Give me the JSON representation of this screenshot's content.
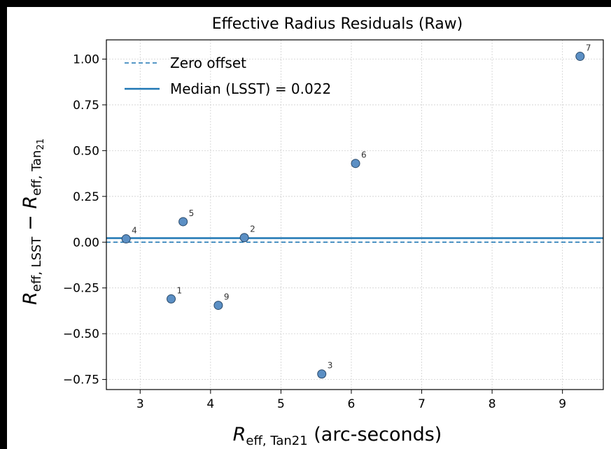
{
  "chart_data": {
    "type": "scatter",
    "title": "Effective Radius Residuals (Raw)",
    "xlabel": {
      "main": "R",
      "sub": "eff, Tan21",
      "tail": " (arc-seconds)"
    },
    "ylabel": {
      "a_main": "R",
      "a_sub": "eff, LSST",
      "minus": " − ",
      "b_main": "R",
      "b_sub": "eff, Tan",
      "b_subsub": "21"
    },
    "xlim": [
      2.52,
      9.58
    ],
    "ylim": [
      -0.805,
      1.105
    ],
    "xticks": [
      3,
      4,
      5,
      6,
      7,
      8,
      9
    ],
    "xtick_labels": [
      "3",
      "4",
      "5",
      "6",
      "7",
      "8",
      "9"
    ],
    "yticks": [
      1.0,
      0.75,
      0.5,
      0.25,
      0.0,
      -0.25,
      -0.5,
      -0.75
    ],
    "ytick_labels": [
      "1.00",
      "0.75",
      "0.50",
      "0.25",
      "0.00",
      "−0.25",
      "−0.50",
      "−0.75"
    ],
    "grid": true,
    "legend_position": "top-left",
    "zero_line": {
      "label": "Zero offset",
      "y": 0.0,
      "style": "dashed",
      "color": "#1f77b4"
    },
    "median_line": {
      "label": "Median (LSST) = 0.022",
      "y": 0.022,
      "style": "solid",
      "color": "#1f77b4"
    },
    "points": [
      {
        "label": "1",
        "x": 3.44,
        "y": -0.31
      },
      {
        "label": "2",
        "x": 4.48,
        "y": 0.025
      },
      {
        "label": "3",
        "x": 5.58,
        "y": -0.72
      },
      {
        "label": "4",
        "x": 2.8,
        "y": 0.018
      },
      {
        "label": "5",
        "x": 3.61,
        "y": 0.112
      },
      {
        "label": "6",
        "x": 6.06,
        "y": 0.43
      },
      {
        "label": "7",
        "x": 9.25,
        "y": 1.015
      },
      {
        "label": "9",
        "x": 4.11,
        "y": -0.345
      }
    ],
    "marker_color": "#5b8fc4",
    "marker_edge": "#2b4a6a"
  }
}
